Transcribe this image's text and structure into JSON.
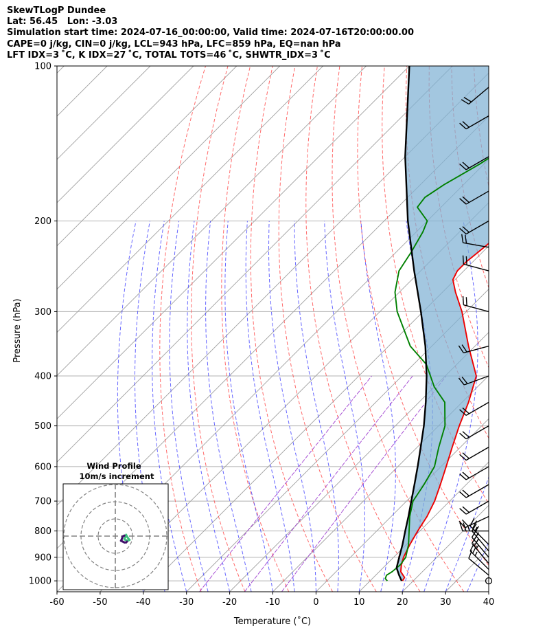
{
  "header": {
    "line1": "SkewTLogP Dundee",
    "line2": "Lat: 56.45   Lon: -3.03",
    "line3": "Simulation start time: 2024-07-16_00:00:00, Valid time: 2024-07-16T20:00:00.00",
    "line4": "CAPE=0 j/kg, CIN=0 j/kg, LCL=943 hPa, LFC=859 hPa, EQ=nan hPa",
    "line5": "LFT IDX=3 ˚C, K IDX=27 ˚C, TOTAL TOTS=46 ˚C, SHWTR_IDX=3 ˚C"
  },
  "chart_data": {
    "type": "skewt-logp",
    "xlabel": "Temperature (˚C)",
    "ylabel": "Pressure (hPa)",
    "xlim": [
      -60,
      40
    ],
    "ylim": [
      1050,
      100
    ],
    "x_ticks": [
      -60,
      -50,
      -40,
      -30,
      -20,
      -10,
      0,
      10,
      20,
      30,
      40
    ],
    "p_ticks": [
      1000,
      900,
      800,
      700,
      600,
      500,
      400,
      300,
      200,
      100
    ],
    "y_scale": "log",
    "grid": true,
    "series": [
      {
        "key": "temperature",
        "color": "#ee0000",
        "points": [
          [
            1000,
            17.5
          ],
          [
            985,
            17.2
          ],
          [
            960,
            15.0
          ],
          [
            930,
            13.5
          ],
          [
            900,
            12.3
          ],
          [
            850,
            10.8
          ],
          [
            800,
            9.5
          ],
          [
            750,
            8.3
          ],
          [
            700,
            6.5
          ],
          [
            650,
            4.0
          ],
          [
            600,
            1.2
          ],
          [
            550,
            -1.9
          ],
          [
            500,
            -5.2
          ],
          [
            450,
            -8.5
          ],
          [
            400,
            -12.8
          ],
          [
            350,
            -21.5
          ],
          [
            300,
            -31.0
          ],
          [
            275,
            -37.0
          ],
          [
            260,
            -40.5
          ],
          [
            250,
            -41.5
          ],
          [
            240,
            -41.5
          ],
          [
            230,
            -41.0
          ],
          [
            220,
            -40.5
          ],
          [
            205,
            -39.8
          ],
          [
            190,
            -39.0
          ],
          [
            175,
            -37.7
          ],
          [
            160,
            -36.8
          ],
          [
            140,
            -35.8
          ],
          [
            120,
            -34.5
          ],
          [
            100,
            -33.5
          ]
        ]
      },
      {
        "key": "dewpoint",
        "color": "#008000",
        "points": [
          [
            1000,
            14.0
          ],
          [
            990,
            13.0
          ],
          [
            975,
            12.5
          ],
          [
            960,
            13.0
          ],
          [
            930,
            13.3
          ],
          [
            900,
            12.8
          ],
          [
            850,
            10.5
          ],
          [
            800,
            7.5
          ],
          [
            750,
            4.3
          ],
          [
            700,
            1.5
          ],
          [
            650,
            0.2
          ],
          [
            600,
            -1.5
          ],
          [
            550,
            -5.0
          ],
          [
            500,
            -8.5
          ],
          [
            450,
            -14.0
          ],
          [
            420,
            -20.0
          ],
          [
            380,
            -27.0
          ],
          [
            350,
            -35.0
          ],
          [
            300,
            -46.0
          ],
          [
            275,
            -51.0
          ],
          [
            250,
            -55.0
          ],
          [
            230,
            -56.5
          ],
          [
            210,
            -58.5
          ],
          [
            200,
            -60.0
          ],
          [
            188,
            -65.5
          ],
          [
            180,
            -66.0
          ],
          [
            170,
            -64.5
          ],
          [
            155,
            -61.0
          ],
          [
            130,
            -56.0
          ],
          [
            100,
            -48.5
          ]
        ]
      },
      {
        "key": "parcel",
        "color": "#000000",
        "points": [
          [
            1000,
            17.3
          ],
          [
            975,
            15.4
          ],
          [
            950,
            13.6
          ],
          [
            943,
            13.1
          ],
          [
            900,
            11.3
          ],
          [
            850,
            9.1
          ],
          [
            800,
            6.6
          ],
          [
            750,
            4.0
          ],
          [
            700,
            1.1
          ],
          [
            650,
            -2.0
          ],
          [
            600,
            -5.4
          ],
          [
            550,
            -9.2
          ],
          [
            500,
            -13.4
          ],
          [
            450,
            -18.4
          ],
          [
            400,
            -24.3
          ],
          [
            350,
            -31.5
          ],
          [
            300,
            -40.5
          ],
          [
            250,
            -51.5
          ],
          [
            200,
            -64.5
          ],
          [
            150,
            -80.0
          ],
          [
            100,
            -100.0
          ]
        ]
      }
    ],
    "wind_barbs": [
      {
        "p": 1000,
        "speed": 0,
        "dir": 0
      },
      {
        "p": 975,
        "speed": 12,
        "dir": 310
      },
      {
        "p": 950,
        "speed": 15,
        "dir": 315
      },
      {
        "p": 925,
        "speed": 15,
        "dir": 320
      },
      {
        "p": 900,
        "speed": 15,
        "dir": 320
      },
      {
        "p": 875,
        "speed": 15,
        "dir": 320
      },
      {
        "p": 850,
        "speed": 15,
        "dir": 315
      },
      {
        "p": 800,
        "speed": 15,
        "dir": 270
      },
      {
        "p": 750,
        "speed": 20,
        "dir": 245
      },
      {
        "p": 700,
        "speed": 20,
        "dir": 240
      },
      {
        "p": 650,
        "speed": 20,
        "dir": 240
      },
      {
        "p": 600,
        "speed": 20,
        "dir": 240
      },
      {
        "p": 550,
        "speed": 20,
        "dir": 240
      },
      {
        "p": 500,
        "speed": 20,
        "dir": 240
      },
      {
        "p": 450,
        "speed": 20,
        "dir": 240
      },
      {
        "p": 400,
        "speed": 20,
        "dir": 250
      },
      {
        "p": 350,
        "speed": 20,
        "dir": 255
      },
      {
        "p": 300,
        "speed": 20,
        "dir": 285
      },
      {
        "p": 250,
        "speed": 20,
        "dir": 285
      },
      {
        "p": 225,
        "speed": 20,
        "dir": 280
      },
      {
        "p": 200,
        "speed": 20,
        "dir": 240
      },
      {
        "p": 175,
        "speed": 20,
        "dir": 240
      },
      {
        "p": 150,
        "speed": 20,
        "dir": 240
      },
      {
        "p": 125,
        "speed": 20,
        "dir": 240
      },
      {
        "p": 110,
        "speed": 20,
        "dir": 230
      }
    ],
    "wind_profile_inset": {
      "title": "Wind Profile",
      "subtitle": "10m/s increment",
      "hodograph_uv": [
        [
          1.5,
          2.0
        ],
        [
          2.0,
          1.0
        ],
        [
          3.0,
          -0.5
        ],
        [
          3.5,
          -1.0
        ],
        [
          2.5,
          -1.5
        ],
        [
          1.0,
          -1.0
        ],
        [
          0.5,
          -0.5
        ],
        [
          1.0,
          0.5
        ],
        [
          0.5,
          1.5
        ],
        [
          -0.5,
          1.0
        ],
        [
          -1.0,
          -0.5
        ],
        [
          -1.5,
          -1.5
        ],
        [
          -0.5,
          -2.0
        ],
        [
          0.5,
          -2.5
        ],
        [
          1.5,
          -2.5
        ],
        [
          2.0,
          -2.0
        ]
      ]
    }
  }
}
